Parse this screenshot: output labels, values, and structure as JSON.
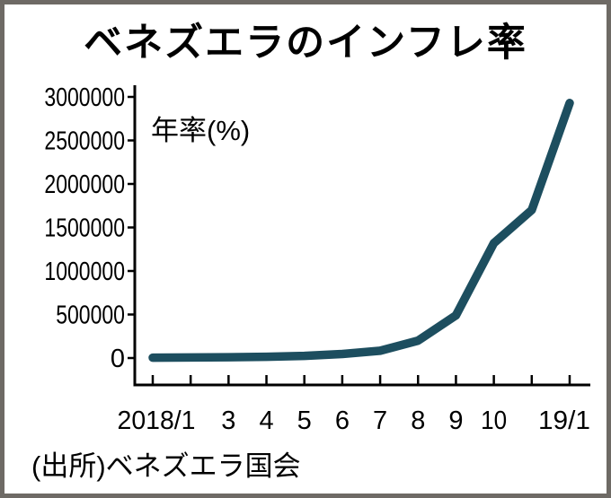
{
  "window": {
    "title": "ベネズエラのインフレ率"
  },
  "chart_data": {
    "type": "line",
    "title": "ベネズエラのインフレ率",
    "y_unit_label": "年率(%)",
    "source": "(出所)ベネズエラ国会",
    "x_tick_labels": [
      "2018/1",
      "",
      "3",
      "4",
      "5",
      "6",
      "7",
      "8",
      "9",
      "10",
      "",
      "19/1"
    ],
    "values": [
      4000,
      6000,
      9000,
      14000,
      25000,
      46000,
      83000,
      200000,
      490000,
      1320000,
      1700000,
      2930000
    ],
    "y_tick_values": [
      0,
      500000,
      1000000,
      1500000,
      2000000,
      2500000,
      3000000
    ],
    "ylim": [
      0,
      3000000
    ],
    "grid": false,
    "legend": "none",
    "line_color": "#1d4e5f"
  },
  "colors": {
    "axis": "#000000",
    "text": "#111111",
    "border": "#6e6a65",
    "background": "#ffffff"
  }
}
